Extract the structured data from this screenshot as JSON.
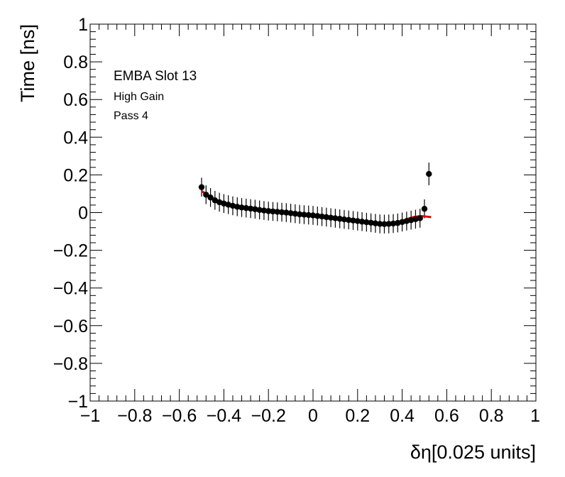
{
  "chart_data": {
    "type": "scatter",
    "xlabel": "δη[0.025 units]",
    "ylabel": "Time [ns]",
    "xlim": [
      -1,
      1
    ],
    "ylim": [
      -1,
      1
    ],
    "grid": false,
    "x_ticks": [
      "−1",
      "−0.8",
      "−0.6",
      "−0.4",
      "−0.2",
      "0",
      "0.2",
      "0.4",
      "0.6",
      "0.8",
      "1"
    ],
    "y_ticks": [
      "−1",
      "−0.8",
      "−0.6",
      "−0.4",
      "−0.2",
      "0",
      "0.2",
      "0.4",
      "0.6",
      "0.8",
      "1"
    ],
    "annotations": [
      "EMBA Slot 13",
      "High Gain",
      "Pass 4"
    ],
    "colors": {
      "points": "#000000",
      "fit": "#e00000"
    },
    "series": [
      {
        "type": "scatter",
        "x": [
          -0.5,
          -0.48,
          -0.46,
          -0.44,
          -0.42,
          -0.4,
          -0.38,
          -0.36,
          -0.34,
          -0.32,
          -0.3,
          -0.28,
          -0.26,
          -0.24,
          -0.22,
          -0.2,
          -0.18,
          -0.16,
          -0.14,
          -0.12,
          -0.1,
          -0.08,
          -0.06,
          -0.04,
          -0.02,
          0.0,
          0.02,
          0.04,
          0.06,
          0.08,
          0.1,
          0.12,
          0.14,
          0.16,
          0.18,
          0.2,
          0.22,
          0.24,
          0.26,
          0.28,
          0.3,
          0.32,
          0.34,
          0.36,
          0.38,
          0.4,
          0.42,
          0.44,
          0.46,
          0.48,
          0.5,
          0.52
        ],
        "y": [
          0.135,
          0.095,
          0.08,
          0.065,
          0.055,
          0.048,
          0.042,
          0.036,
          0.031,
          0.027,
          0.024,
          0.021,
          0.018,
          0.014,
          0.011,
          0.008,
          0.006,
          0.004,
          0.002,
          0.0,
          -0.003,
          -0.006,
          -0.009,
          -0.011,
          -0.013,
          -0.015,
          -0.018,
          -0.021,
          -0.024,
          -0.027,
          -0.03,
          -0.033,
          -0.036,
          -0.039,
          -0.042,
          -0.045,
          -0.048,
          -0.051,
          -0.054,
          -0.057,
          -0.06,
          -0.061,
          -0.06,
          -0.058,
          -0.055,
          -0.05,
          -0.045,
          -0.04,
          -0.035,
          -0.03,
          0.02,
          0.205
        ],
        "error": [
          0.05,
          0.05,
          0.05,
          0.05,
          0.05,
          0.05,
          0.05,
          0.05,
          0.05,
          0.05,
          0.05,
          0.05,
          0.05,
          0.05,
          0.05,
          0.05,
          0.05,
          0.05,
          0.05,
          0.05,
          0.05,
          0.05,
          0.05,
          0.05,
          0.05,
          0.05,
          0.05,
          0.05,
          0.05,
          0.05,
          0.05,
          0.05,
          0.05,
          0.05,
          0.05,
          0.05,
          0.05,
          0.05,
          0.05,
          0.05,
          0.05,
          0.05,
          0.05,
          0.05,
          0.05,
          0.05,
          0.05,
          0.05,
          0.05,
          0.05,
          0.05,
          0.06
        ]
      },
      {
        "type": "line",
        "x": [
          -0.5,
          -0.46,
          -0.42,
          -0.38,
          -0.34,
          -0.3,
          -0.26,
          -0.22,
          -0.18,
          -0.14,
          -0.1,
          -0.06,
          -0.02,
          0.02,
          0.06,
          0.1,
          0.14,
          0.18,
          0.22,
          0.26,
          0.3,
          0.33,
          0.36,
          0.39,
          0.42,
          0.45,
          0.48,
          0.5,
          0.53
        ],
        "y": [
          0.115,
          0.082,
          0.06,
          0.045,
          0.034,
          0.026,
          0.019,
          0.013,
          0.007,
          0.002,
          -0.003,
          -0.008,
          -0.013,
          -0.018,
          -0.024,
          -0.03,
          -0.036,
          -0.042,
          -0.048,
          -0.054,
          -0.059,
          -0.06,
          -0.056,
          -0.048,
          -0.035,
          -0.024,
          -0.019,
          -0.02,
          -0.024
        ]
      }
    ]
  }
}
